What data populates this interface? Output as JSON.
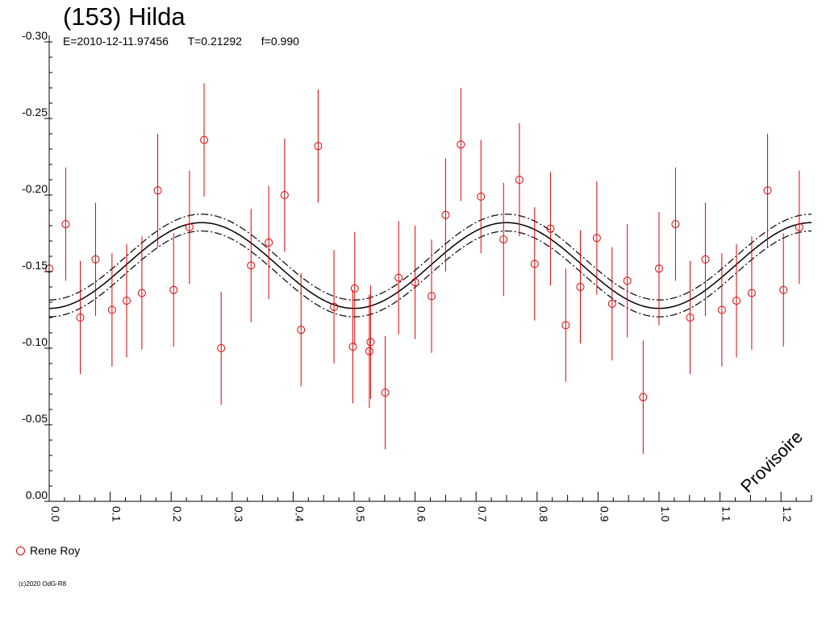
{
  "header": {
    "title": "(153) Hilda",
    "epoch": "E=2010-12-11.97456",
    "period": "T=0.21292",
    "fraction": "f=0.990"
  },
  "legend": {
    "observer": "Rene Roy"
  },
  "watermark": "Provisoire",
  "copyright": "(c)2020 OdG-R8",
  "colors": {
    "points": "#e00000",
    "curve": "#000000",
    "axis": "#000000"
  },
  "chart_data": {
    "type": "scatter",
    "x_ticks": [
      "0.0",
      "0.1",
      "0.2",
      "0.3",
      "0.4",
      "0.5",
      "0.6",
      "0.7",
      "0.8",
      "0.9",
      "1.0",
      "1.1",
      "1.2"
    ],
    "y_ticks": [
      "-0.30",
      "-0.25",
      "-0.20",
      "-0.15",
      "-0.10",
      "-0.05",
      "0.00"
    ],
    "xlim": [
      0.0,
      1.25
    ],
    "ylim": [
      -0.3,
      0.0
    ],
    "y_inverted": true,
    "fit": {
      "mean": -0.154,
      "amplitude": 0.028,
      "band": 0.0055,
      "phase_of_max": 0.25,
      "cycles_per_unit": 2
    },
    "series": [
      {
        "name": "Rene Roy",
        "error": 0.037,
        "points": [
          [
            0.0,
            -0.152
          ],
          [
            0.027,
            -0.181
          ],
          [
            0.051,
            -0.12
          ],
          [
            0.076,
            -0.158
          ],
          [
            0.103,
            -0.125
          ],
          [
            0.127,
            -0.131
          ],
          [
            0.152,
            -0.136
          ],
          [
            0.178,
            -0.203
          ],
          [
            0.204,
            -0.138
          ],
          [
            0.23,
            -0.179
          ],
          [
            0.254,
            -0.236
          ],
          [
            0.282,
            -0.1
          ],
          [
            0.331,
            -0.154
          ],
          [
            0.36,
            -0.169
          ],
          [
            0.386,
            -0.2
          ],
          [
            0.413,
            -0.112
          ],
          [
            0.441,
            -0.232
          ],
          [
            0.467,
            -0.127
          ],
          [
            0.498,
            -0.101
          ],
          [
            0.501,
            -0.139
          ],
          [
            0.525,
            -0.098
          ],
          [
            0.527,
            -0.104
          ],
          [
            0.551,
            -0.071
          ],
          [
            0.573,
            -0.146
          ],
          [
            0.6,
            -0.143
          ],
          [
            0.627,
            -0.134
          ],
          [
            0.65,
            -0.187
          ],
          [
            0.675,
            -0.233
          ],
          [
            0.708,
            -0.199
          ],
          [
            0.745,
            -0.171
          ],
          [
            0.771,
            -0.21
          ],
          [
            0.796,
            -0.155
          ],
          [
            0.822,
            -0.178
          ],
          [
            0.847,
            -0.115
          ],
          [
            0.871,
            -0.14
          ],
          [
            0.898,
            -0.172
          ],
          [
            0.923,
            -0.129
          ],
          [
            0.948,
            -0.144
          ],
          [
            0.974,
            -0.068
          ],
          [
            1.0,
            -0.152
          ],
          [
            1.027,
            -0.181
          ],
          [
            1.051,
            -0.12
          ],
          [
            1.076,
            -0.158
          ],
          [
            1.103,
            -0.125
          ],
          [
            1.127,
            -0.131
          ],
          [
            1.152,
            -0.136
          ],
          [
            1.178,
            -0.203
          ],
          [
            1.204,
            -0.138
          ],
          [
            1.23,
            -0.179
          ]
        ]
      }
    ]
  }
}
